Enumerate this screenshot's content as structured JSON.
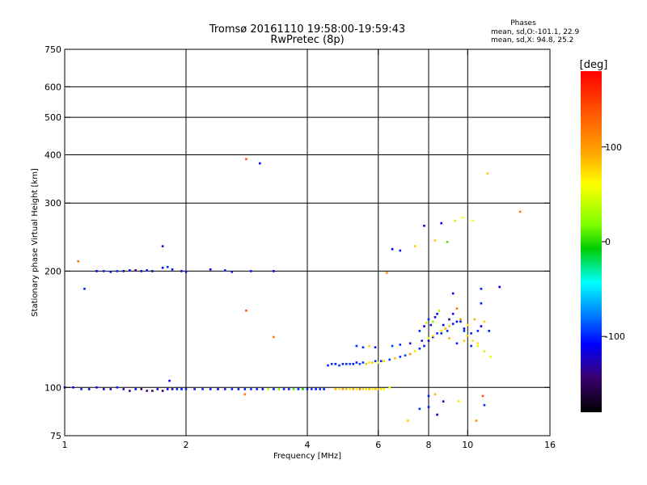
{
  "chart_data": {
    "type": "scatter",
    "title": "Tromsø 20161110 19:58:00-19:59:43",
    "subtitle": "RwPretec (8p)",
    "legend_text": {
      "heading": "Phases",
      "line1": "mean, sd,O:-101.1, 22.9",
      "line2": "mean, sd,X:  94.8, 25.2"
    },
    "xlabel": "Frequency [MHz]",
    "ylabel": "Stationary phase Virtual Height [km]",
    "x_scale": "log",
    "y_scale": "log",
    "xlim": [
      1,
      16
    ],
    "ylim": [
      75,
      750
    ],
    "x_ticks": [
      1,
      2,
      4,
      6,
      8,
      10,
      16
    ],
    "x_tick_labels": [
      "1",
      "2",
      "4",
      "6",
      "8",
      "10",
      "16"
    ],
    "y_ticks": [
      75,
      100,
      200,
      300,
      400,
      500,
      600,
      750
    ],
    "y_tick_labels": [
      "75",
      "100",
      "200",
      "300",
      "400",
      "500",
      "600",
      "750"
    ],
    "x_grid": [
      2,
      4,
      6,
      8,
      10
    ],
    "y_grid": [
      100,
      200,
      300,
      400,
      500,
      600
    ],
    "colorbar": {
      "label": "[deg]",
      "range": [
        -180,
        180
      ],
      "ticks": [
        100,
        0,
        -100
      ],
      "tick_labels": [
        "100",
        "0",
        "-100"
      ]
    },
    "series": [
      {
        "x": [
          1.0,
          1.05,
          1.1,
          1.15,
          1.2,
          1.25,
          1.3,
          1.35,
          1.4,
          1.45,
          1.5,
          1.55,
          1.6,
          1.65,
          1.7,
          1.75,
          1.8,
          1.85,
          1.9,
          1.95,
          2.0,
          2.1,
          2.2,
          2.3,
          2.4,
          2.5,
          2.6,
          2.7,
          2.8,
          2.9,
          3.0,
          3.1,
          3.2,
          3.3,
          3.4,
          3.5,
          3.6,
          3.7,
          3.8,
          3.9,
          4.0,
          4.1,
          4.2,
          4.3,
          4.4
        ],
        "y": [
          100,
          100,
          99,
          99,
          100,
          99,
          99,
          100,
          99,
          98,
          99,
          99,
          98,
          98,
          99,
          98,
          99,
          99,
          99,
          99,
          99,
          99,
          99,
          99,
          99,
          99,
          99,
          99,
          99,
          99,
          99,
          99,
          99,
          99,
          99,
          99,
          99,
          99,
          99,
          99,
          99,
          99,
          99,
          99,
          99
        ],
        "phase": [
          -100,
          -110,
          -95,
          -120,
          -105,
          -115,
          -130,
          -100,
          -125,
          -140,
          -110,
          -150,
          -135,
          -145,
          -120,
          -150,
          -110,
          -130,
          -100,
          -105,
          -100,
          -105,
          -95,
          -100,
          -110,
          -100,
          -95,
          -105,
          -100,
          -90,
          -100,
          -110,
          80,
          -100,
          60,
          -95,
          -100,
          40,
          -100,
          20,
          -100,
          -90,
          -100,
          -95,
          -100
        ]
      },
      {
        "x": [
          4.7,
          4.8,
          4.9,
          5.0,
          5.1,
          5.2,
          5.3,
          5.4,
          5.5,
          5.6,
          5.7,
          5.8,
          5.9,
          6.0,
          6.1,
          6.2,
          6.4
        ],
        "y": [
          99,
          99,
          99,
          99,
          99,
          99,
          99,
          99,
          99,
          99,
          99,
          99,
          99,
          99,
          99,
          99,
          100
        ],
        "phase": [
          130,
          110,
          140,
          125,
          110,
          135,
          100,
          145,
          120,
          110,
          125,
          105,
          130,
          120,
          110,
          100,
          95
        ]
      },
      {
        "x": [
          1.2,
          1.25,
          1.3,
          1.35,
          1.4,
          1.45,
          1.5,
          1.55,
          1.6,
          1.65,
          1.75,
          1.8,
          1.85,
          1.95,
          2.0,
          2.3,
          2.5,
          2.6,
          2.9,
          3.3
        ],
        "y": [
          200,
          200,
          199,
          200,
          200,
          201,
          201,
          200,
          201,
          200,
          204,
          205,
          202,
          200,
          199,
          202,
          201,
          199,
          200,
          200
        ],
        "phase": [
          -110,
          -100,
          -105,
          -95,
          -120,
          -115,
          -140,
          -125,
          -100,
          -130,
          -110,
          -90,
          -105,
          -120,
          -100,
          -110,
          -95,
          -105,
          -100,
          -110
        ]
      },
      {
        "x": [
          4.5,
          4.6,
          4.7,
          4.8,
          4.9,
          5.0,
          5.1,
          5.2,
          5.3,
          5.4,
          5.5,
          5.6,
          5.7,
          5.8,
          5.9,
          6.0,
          6.1,
          6.2,
          6.4,
          6.6,
          6.8,
          7.0,
          7.2,
          7.4,
          7.6,
          7.8,
          8.0,
          8.2,
          8.4,
          8.6,
          8.8,
          9.0,
          9.2,
          9.4,
          9.6,
          9.8,
          10.0,
          10.3,
          10.6,
          11.0,
          11.4
        ],
        "y": [
          114,
          115,
          115,
          114,
          115,
          115,
          115,
          115,
          116,
          115,
          116,
          115,
          116,
          116,
          117,
          116,
          117,
          117,
          118,
          119,
          120,
          121,
          122,
          124,
          126,
          128,
          132,
          135,
          138,
          140,
          142,
          144,
          146,
          148,
          150,
          140,
          136,
          132,
          128,
          124,
          120
        ],
        "phase": [
          -95,
          -90,
          -100,
          -85,
          -95,
          -90,
          -85,
          -95,
          -100,
          -80,
          -90,
          120,
          110,
          125,
          -90,
          100,
          -95,
          115,
          -85,
          130,
          -90,
          -80,
          140,
          110,
          -95,
          -100,
          -120,
          -105,
          -95,
          110,
          130,
          120,
          -100,
          -110,
          140,
          -95,
          115,
          110,
          90,
          85,
          95
        ]
      },
      {
        "x": [
          7.6,
          7.8,
          7.9,
          8.0,
          8.1,
          8.2,
          8.3,
          8.4,
          8.5,
          8.7,
          8.9,
          9.0,
          9.2,
          9.4,
          9.6,
          9.8,
          10.0,
          10.2,
          10.4,
          10.6,
          10.8,
          11.0,
          11.3
        ],
        "y": [
          140,
          144,
          147,
          150,
          145,
          148,
          152,
          155,
          158,
          145,
          140,
          150,
          155,
          160,
          148,
          142,
          145,
          138,
          150,
          140,
          144,
          148,
          140
        ],
        "phase": [
          -100,
          -110,
          80,
          -95,
          -105,
          60,
          -120,
          -100,
          70,
          -110,
          -95,
          -130,
          -105,
          150,
          -100,
          -115,
          110,
          -100,
          130,
          -95,
          -110,
          120,
          -100
        ]
      },
      {
        "x": [
          5.3,
          5.5,
          5.7,
          5.9,
          6.5,
          6.8,
          7.2,
          7.7,
          8.0,
          8.2,
          8.6,
          9.0,
          9.4,
          9.8,
          10.2,
          10.6
        ],
        "y": [
          128,
          127,
          128,
          127,
          128,
          129,
          130,
          132,
          134,
          136,
          138,
          134,
          130,
          132,
          128,
          130
        ],
        "phase": [
          -90,
          -95,
          120,
          -100,
          -85,
          -95,
          -110,
          -100,
          100,
          110,
          -95,
          130,
          -100,
          120,
          -95,
          110
        ]
      },
      {
        "x": [
          1.08,
          1.12,
          1.82,
          2.82,
          3.05,
          2.82,
          1.75,
          6.5,
          6.8,
          7.4,
          7.8,
          8.3,
          8.6,
          8.9,
          9.3,
          9.7,
          10.3,
          11.2,
          13.5,
          10.8,
          11.0,
          12.0,
          6.3,
          8.0,
          8.7,
          9.5,
          10.5,
          8.0,
          8.3,
          8.4,
          7.1,
          7.6,
          2.8,
          3.3,
          9.2,
          10.9,
          10.8
        ],
        "y": [
          212,
          180,
          104,
          390,
          380,
          158,
          232,
          228,
          226,
          232,
          262,
          240,
          266,
          238,
          270,
          275,
          270,
          358,
          285,
          180,
          90,
          182,
          198,
          95,
          92,
          92,
          82,
          89,
          96,
          85,
          82,
          88,
          96,
          135,
          175,
          95,
          165
        ],
        "phase": [
          150,
          -100,
          -110,
          160,
          -110,
          160,
          -120,
          -110,
          -100,
          120,
          -110,
          120,
          -110,
          40,
          80,
          100,
          100,
          120,
          150,
          -100,
          -90,
          -110,
          140,
          -100,
          -120,
          110,
          140,
          -100,
          130,
          -110,
          120,
          -95,
          150,
          150,
          -110,
          160,
          -100
        ]
      }
    ]
  }
}
